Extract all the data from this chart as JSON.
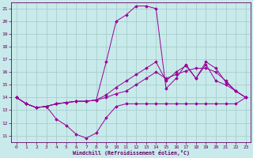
{
  "xlabel": "Windchill (Refroidissement éolien,°C)",
  "x_ticks": [
    0,
    1,
    2,
    3,
    4,
    5,
    6,
    7,
    8,
    9,
    10,
    11,
    12,
    13,
    14,
    15,
    16,
    17,
    18,
    19,
    20,
    21,
    22,
    23
  ],
  "ylim": [
    10.5,
    21.5
  ],
  "xlim": [
    -0.5,
    23.5
  ],
  "yticks": [
    11,
    12,
    13,
    14,
    15,
    16,
    17,
    18,
    19,
    20,
    21
  ],
  "bg_color": "#c8eaea",
  "line_color": "#990099",
  "series": [
    [
      14.0,
      13.5,
      13.2,
      13.3,
      12.3,
      11.8,
      11.1,
      10.8,
      11.2,
      12.4,
      13.3,
      13.5,
      13.5,
      13.5,
      13.5,
      13.5,
      13.5,
      13.5,
      13.5,
      13.5,
      13.5,
      13.5,
      13.5,
      14.0
    ],
    [
      14.0,
      13.5,
      13.2,
      13.3,
      13.5,
      13.6,
      13.7,
      13.7,
      13.8,
      14.0,
      14.3,
      14.5,
      15.0,
      15.5,
      16.0,
      15.5,
      15.8,
      16.1,
      16.3,
      16.3,
      16.0,
      15.3,
      14.5,
      14.0
    ],
    [
      14.0,
      13.5,
      13.2,
      13.3,
      13.5,
      13.6,
      13.7,
      13.7,
      13.8,
      14.2,
      14.8,
      15.3,
      15.8,
      16.3,
      16.8,
      15.3,
      16.0,
      16.5,
      15.5,
      16.6,
      15.3,
      15.0,
      14.5,
      14.0
    ],
    [
      14.0,
      13.5,
      13.2,
      13.3,
      13.5,
      13.6,
      13.7,
      13.7,
      13.8,
      16.8,
      20.0,
      20.5,
      21.2,
      21.2,
      21.0,
      14.7,
      15.5,
      16.6,
      15.5,
      16.8,
      16.3,
      15.2,
      14.5,
      14.0
    ]
  ]
}
